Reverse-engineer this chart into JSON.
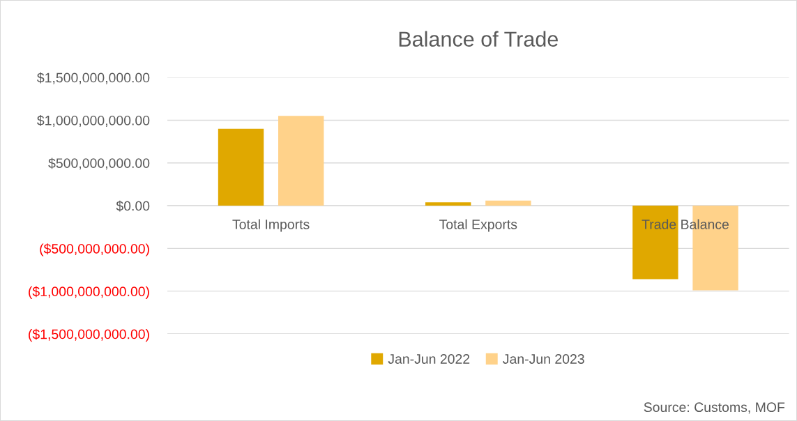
{
  "chart_data": {
    "type": "bar",
    "title": "Balance of Trade",
    "categories": [
      "Total Imports",
      "Total Exports",
      "Trade Balance"
    ],
    "series": [
      {
        "name": "Jan-Jun 2022",
        "color": "#e0a800",
        "values": [
          900000000,
          40000000,
          -860000000
        ]
      },
      {
        "name": "Jan-Jun 2023",
        "color": "#ffd28a",
        "values": [
          1050000000,
          60000000,
          -990000000
        ]
      }
    ],
    "ylim": [
      -1500000000,
      1500000000
    ],
    "yticks": [
      {
        "value": -1500000000,
        "label": "($1,500,000,000.00)"
      },
      {
        "value": -1000000000,
        "label": "($1,000,000,000.00)"
      },
      {
        "value": -500000000,
        "label": "($500,000,000.00)"
      },
      {
        "value": 0,
        "label": "$0.00"
      },
      {
        "value": 500000000,
        "label": "$500,000,000.00"
      },
      {
        "value": 1000000000,
        "label": "$1,000,000,000.00"
      },
      {
        "value": 1500000000,
        "label": "$1,500,000,000.00"
      }
    ],
    "grid": "y",
    "legend": "bottom",
    "annotations": [
      "Source: Customs, MOF"
    ]
  }
}
